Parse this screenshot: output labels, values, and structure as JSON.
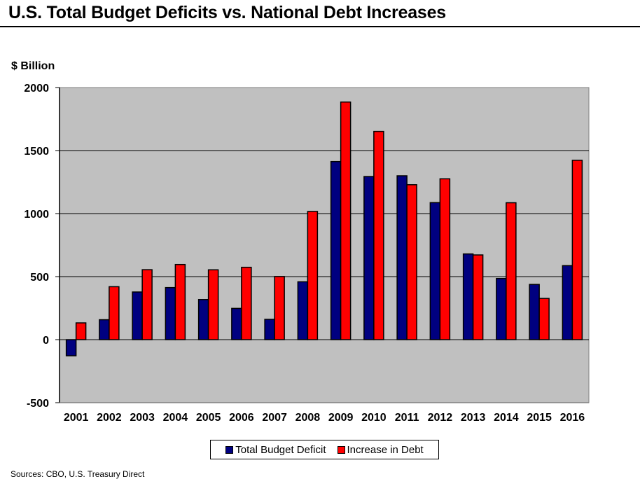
{
  "header": {
    "title": "U.S. Total Budget Deficits vs. National Debt Increases",
    "unit_label": "$ Billion"
  },
  "footer": {
    "source": "Sources:  CBO, U.S. Treasury Direct"
  },
  "colors": {
    "plot_background": "#c0c0c0",
    "deficit": "#000080",
    "debt": "#ff0000",
    "gridline": "#000000"
  },
  "chart_data": {
    "type": "bar",
    "title": "U.S. Total Budget Deficits vs. National Debt Increases",
    "xlabel": "",
    "ylabel": "$ Billion",
    "ylim": [
      -500,
      2000
    ],
    "yticks": [
      -500,
      0,
      500,
      1000,
      1500,
      2000
    ],
    "grid": true,
    "legend_position": "bottom-center",
    "categories": [
      "2001",
      "2002",
      "2003",
      "2004",
      "2005",
      "2006",
      "2007",
      "2008",
      "2009",
      "2010",
      "2011",
      "2012",
      "2013",
      "2014",
      "2015",
      "2016"
    ],
    "series": [
      {
        "name": "Total Budget Deficit",
        "color": "#000080",
        "values": [
          -128,
          158,
          378,
          413,
          318,
          248,
          161,
          459,
          1413,
          1294,
          1300,
          1087,
          680,
          485,
          438,
          587
        ]
      },
      {
        "name": "Increase in Debt",
        "color": "#ff0000",
        "values": [
          133,
          420,
          555,
          596,
          554,
          574,
          501,
          1017,
          1885,
          1652,
          1229,
          1276,
          672,
          1086,
          327,
          1423
        ]
      }
    ]
  }
}
